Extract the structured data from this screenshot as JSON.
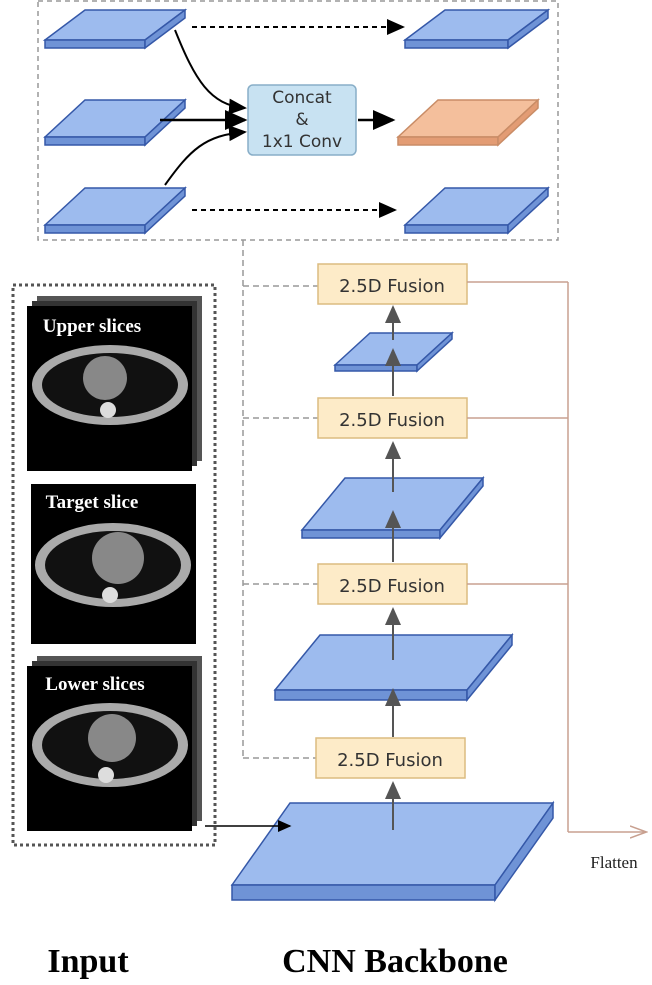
{
  "fusion_module": {
    "label_lines": [
      "Concat",
      "&",
      "1x1 Conv"
    ]
  },
  "input": {
    "slices": [
      "Upper slices",
      "Target slice",
      "Lower slices"
    ],
    "title": "Input"
  },
  "backbone": {
    "fusion_blocks": [
      "2.5D Fusion",
      "2.5D Fusion",
      "2.5D Fusion",
      "2.5D Fusion"
    ],
    "output": "Flatten",
    "title": "CNN Backbone"
  }
}
